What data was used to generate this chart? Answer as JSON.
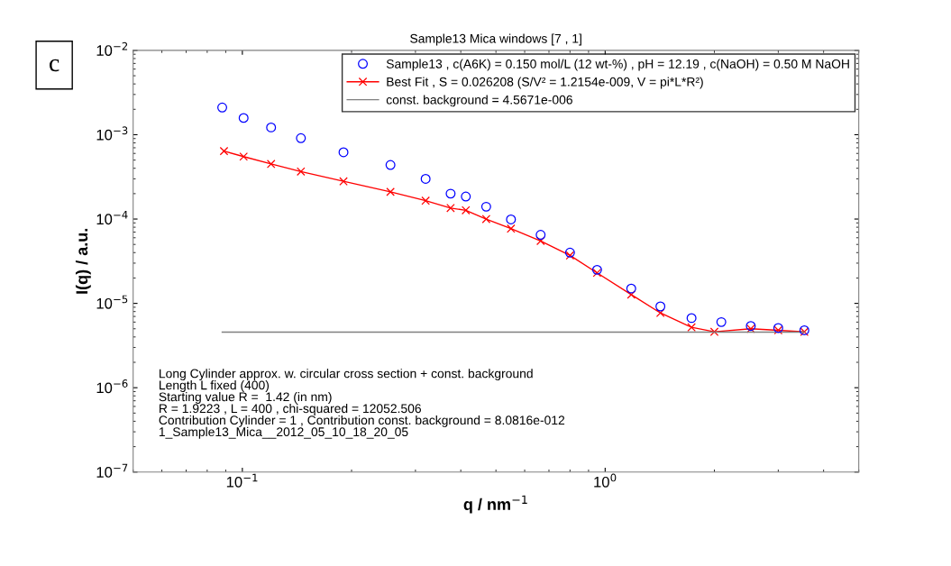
{
  "chart_data": {
    "type": "line",
    "title": "Sample13 Mica windows [7 , 1]",
    "xlabel": "q / nm$^{−1}$",
    "ylabel": "I(q) / a.u.",
    "log": "xy",
    "grid": false,
    "legend": "top right",
    "xlim": [
      0.05,
      5
    ],
    "xticks": [
      {
        "value": 0.1,
        "label": "10$^{−1}$"
      },
      {
        "value": 1,
        "label": "10$^{0}$"
      }
    ],
    "ylim": [
      1e-07,
      0.01
    ],
    "yticks": [
      {
        "value": 1e-07,
        "label": "10$^{−7}$"
      },
      {
        "value": 1e-06,
        "label": "10$^{−6}$"
      },
      {
        "value": 1e-05,
        "label": "10$^{−5}$"
      },
      {
        "value": 0.0001,
        "label": "10$^{−4}$"
      },
      {
        "value": 0.001,
        "label": "10$^{−3}$"
      },
      {
        "value": 0.01,
        "label": "10$^{−2}$"
      }
    ],
    "series": [
      {
        "name": "Sample13 , c(A6K) = 0.150 mol/L (12 wt-%) , pH = 12.19 , c(NaOH) = 0.50 M NaOH",
        "type": "scatter",
        "marker": "circle",
        "color": "#0000ff",
        "x": [
          0.088,
          0.1008,
          0.12,
          0.145,
          0.19,
          0.256,
          0.32,
          0.375,
          0.413,
          0.47,
          0.55,
          0.664,
          0.8,
          0.95,
          1.18,
          1.42,
          1.73,
          2.09,
          2.52,
          3.0,
          3.54
        ],
        "values": [
          0.0021,
          0.00158,
          0.00122,
          0.00091,
          0.00062,
          0.000437,
          0.0003,
          0.0002,
          0.000185,
          0.00014,
          9.9e-05,
          6.5e-05,
          4e-05,
          2.5e-05,
          1.5e-05,
          9.2e-06,
          6.7e-06,
          6e-06,
          5.4e-06,
          5.1e-06,
          4.8e-06
        ]
      },
      {
        "name": "Best Fit , S = 0.026208 (S/V² = 1.2154e-009, V = pi*L*R²)",
        "marker": "cross",
        "line_style": "solid",
        "color": "#ff0000",
        "x": [
          0.089,
          0.1008,
          0.12,
          0.145,
          0.19,
          0.256,
          0.32,
          0.375,
          0.413,
          0.47,
          0.55,
          0.664,
          0.8,
          0.95,
          1.18,
          1.42,
          1.73,
          2.0,
          2.52,
          3.0,
          3.54
        ],
        "values": [
          0.00064,
          0.00055,
          0.00045,
          0.000366,
          0.00028,
          0.00021,
          0.000165,
          0.000135,
          0.000127,
          0.0001,
          7.7e-05,
          5.5e-05,
          3.7e-05,
          2.3e-05,
          1.27e-05,
          7.7e-06,
          5.2e-06,
          4.6e-06,
          5e-06,
          4.8e-06,
          4.6e-06
        ]
      },
      {
        "name": "const. background = 4.5671e-006",
        "marker": "none",
        "line_style": "solid",
        "color": "#808080",
        "x": [
          0.088,
          3.54
        ],
        "values": [
          4.5671e-06,
          4.5671e-06
        ]
      }
    ],
    "annotations": [
      "c",
      "Long Cylinder approx. w. circular cross section + const. background\nLength L fixed (400)\nStarting value R =  1.42 (in nm)\nR = 1.9223 , L = 400 , chi-squared = 12052.506\nContribution Cylinder = 1 , Contribution const. background = 8.0816e-012\n1_Sample13_Mica__2012_05_10_18_20_05"
    ]
  }
}
